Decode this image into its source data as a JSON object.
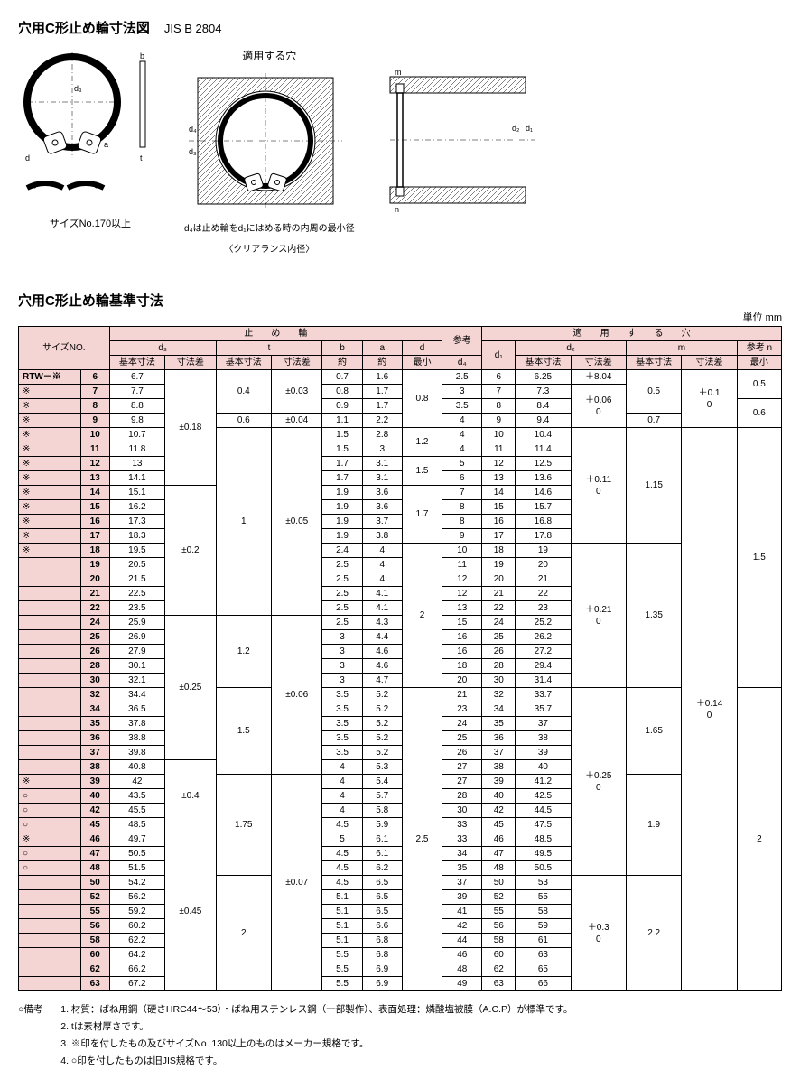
{
  "header": {
    "title": "穴用C形止め輪寸法図",
    "standard": "JIS B 2804",
    "hole_label": "適用する穴",
    "center_note1": "d₄は止め輪をd₁にはめる時の内周の最小径",
    "center_note2": "〈クリアランス内径〉",
    "size_note": "サイズNo.170以上"
  },
  "section2_title": "穴用C形止め輪基準寸法",
  "unit_label": "単位 mm",
  "table": {
    "group_headers": {
      "ring": "止　　め　　輪",
      "ref": "参考",
      "hole": "適　　用　　す　　る　　穴"
    },
    "sub_headers": {
      "size_no": "サイズNO.",
      "d3": "d₃",
      "t": "t",
      "b": "b",
      "a": "a",
      "d": "d",
      "d4": "d₄",
      "d1": "d₁",
      "d2": "d₂",
      "m": "m",
      "ref_n": "参考 n"
    },
    "sub2": {
      "basic": "基本寸法",
      "tol": "寸法差",
      "approx": "約",
      "min": "最小"
    },
    "prefix": "RTW－※",
    "rows": [
      {
        "mark": "",
        "no": "6",
        "d3": "6.7",
        "t": "0.4",
        "b": "0.7",
        "a": "1.6",
        "d4": "2.5",
        "d1": "6",
        "d2": "6.25",
        "n": "0.5"
      },
      {
        "mark": "※",
        "no": "7",
        "d3": "7.7",
        "t": "",
        "b": "0.8",
        "a": "1.7",
        "d4": "3",
        "d1": "7",
        "d2": "7.3",
        "n": ""
      },
      {
        "mark": "※",
        "no": "8",
        "d3": "8.8",
        "t": "",
        "b": "0.9",
        "a": "1.7",
        "d4": "3.5",
        "d1": "8",
        "d2": "8.4",
        "n": ""
      },
      {
        "mark": "※",
        "no": "9",
        "d3": "9.8",
        "t": "0.6",
        "b": "1.1",
        "a": "2.2",
        "d4": "4",
        "d1": "9",
        "d2": "9.4",
        "n": "0.6"
      },
      {
        "mark": "※",
        "no": "10",
        "d3": "10.7",
        "t": "",
        "b": "1.5",
        "a": "2.8",
        "d4": "4",
        "d1": "10",
        "d2": "10.4",
        "n": ""
      },
      {
        "mark": "※",
        "no": "11",
        "d3": "11.8",
        "t": "",
        "b": "1.5",
        "a": "3",
        "d4": "4",
        "d1": "11",
        "d2": "11.4",
        "n": ""
      },
      {
        "mark": "※",
        "no": "12",
        "d3": "13",
        "t": "",
        "b": "1.7",
        "a": "3.1",
        "d4": "5",
        "d1": "12",
        "d2": "12.5",
        "n": ""
      },
      {
        "mark": "※",
        "no": "13",
        "d3": "14.1",
        "t": "",
        "b": "1.7",
        "a": "3.1",
        "d4": "6",
        "d1": "13",
        "d2": "13.6",
        "n": ""
      },
      {
        "mark": "※",
        "no": "14",
        "d3": "15.1",
        "t": "",
        "b": "1.9",
        "a": "3.6",
        "d4": "7",
        "d1": "14",
        "d2": "14.6",
        "n": ""
      },
      {
        "mark": "※",
        "no": "15",
        "d3": "16.2",
        "t": "",
        "b": "1.9",
        "a": "3.6",
        "d4": "8",
        "d1": "15",
        "d2": "15.7",
        "n": ""
      },
      {
        "mark": "※",
        "no": "16",
        "d3": "17.3",
        "t": "1",
        "b": "1.9",
        "a": "3.7",
        "d4": "8",
        "d1": "16",
        "d2": "16.8",
        "n": ""
      },
      {
        "mark": "※",
        "no": "17",
        "d3": "18.3",
        "t": "",
        "b": "1.9",
        "a": "3.8",
        "d4": "9",
        "d1": "17",
        "d2": "17.8",
        "n": ""
      },
      {
        "mark": "※",
        "no": "18",
        "d3": "19.5",
        "t": "",
        "b": "2.4",
        "a": "4",
        "d4": "10",
        "d1": "18",
        "d2": "19",
        "n": ""
      },
      {
        "mark": "",
        "no": "19",
        "d3": "20.5",
        "t": "",
        "b": "2.5",
        "a": "4",
        "d4": "11",
        "d1": "19",
        "d2": "20",
        "n": ""
      },
      {
        "mark": "",
        "no": "20",
        "d3": "21.5",
        "t": "",
        "b": "2.5",
        "a": "4",
        "d4": "12",
        "d1": "20",
        "d2": "21",
        "n": ""
      },
      {
        "mark": "",
        "no": "21",
        "d3": "22.5",
        "t": "",
        "b": "2.5",
        "a": "4.1",
        "d4": "12",
        "d1": "21",
        "d2": "22",
        "n": ""
      },
      {
        "mark": "",
        "no": "22",
        "d3": "23.5",
        "t": "",
        "b": "2.5",
        "a": "4.1",
        "d4": "13",
        "d1": "22",
        "d2": "23",
        "n": ""
      },
      {
        "mark": "",
        "no": "24",
        "d3": "25.9",
        "t": "",
        "b": "2.5",
        "a": "4.3",
        "d4": "15",
        "d1": "24",
        "d2": "25.2",
        "n": ""
      },
      {
        "mark": "",
        "no": "25",
        "d3": "26.9",
        "t": "",
        "b": "3",
        "a": "4.4",
        "d4": "16",
        "d1": "25",
        "d2": "26.2",
        "n": ""
      },
      {
        "mark": "",
        "no": "26",
        "d3": "27.9",
        "t": "",
        "b": "3",
        "a": "4.6",
        "d4": "16",
        "d1": "26",
        "d2": "27.2",
        "n": ""
      },
      {
        "mark": "",
        "no": "28",
        "d3": "30.1",
        "t": "1.2",
        "b": "3",
        "a": "4.6",
        "d4": "18",
        "d1": "28",
        "d2": "29.4",
        "n": ""
      },
      {
        "mark": "",
        "no": "30",
        "d3": "32.1",
        "t": "",
        "b": "3",
        "a": "4.7",
        "d4": "20",
        "d1": "30",
        "d2": "31.4",
        "n": ""
      },
      {
        "mark": "",
        "no": "32",
        "d3": "34.4",
        "t": "",
        "b": "3.5",
        "a": "5.2",
        "d4": "21",
        "d1": "32",
        "d2": "33.7",
        "n": ""
      },
      {
        "mark": "",
        "no": "34",
        "d3": "36.5",
        "t": "",
        "b": "3.5",
        "a": "5.2",
        "d4": "23",
        "d1": "34",
        "d2": "35.7",
        "n": ""
      },
      {
        "mark": "",
        "no": "35",
        "d3": "37.8",
        "t": "",
        "b": "3.5",
        "a": "5.2",
        "d4": "24",
        "d1": "35",
        "d2": "37",
        "n": ""
      },
      {
        "mark": "",
        "no": "36",
        "d3": "38.8",
        "t": "1.5",
        "b": "3.5",
        "a": "5.2",
        "d4": "25",
        "d1": "36",
        "d2": "38",
        "n": ""
      },
      {
        "mark": "",
        "no": "37",
        "d3": "39.8",
        "t": "",
        "b": "3.5",
        "a": "5.2",
        "d4": "26",
        "d1": "37",
        "d2": "39",
        "n": ""
      },
      {
        "mark": "",
        "no": "38",
        "d3": "40.8",
        "t": "",
        "b": "4",
        "a": "5.3",
        "d4": "27",
        "d1": "38",
        "d2": "40",
        "n": ""
      },
      {
        "mark": "※",
        "no": "39",
        "d3": "42",
        "t": "",
        "b": "4",
        "a": "5.4",
        "d4": "27",
        "d1": "39",
        "d2": "41.2",
        "n": ""
      },
      {
        "mark": "○",
        "no": "40",
        "d3": "43.5",
        "t": "",
        "b": "4",
        "a": "5.7",
        "d4": "28",
        "d1": "40",
        "d2": "42.5",
        "n": ""
      },
      {
        "mark": "○",
        "no": "42",
        "d3": "45.5",
        "t": "",
        "b": "4",
        "a": "5.8",
        "d4": "30",
        "d1": "42",
        "d2": "44.5",
        "n": ""
      },
      {
        "mark": "○",
        "no": "45",
        "d3": "48.5",
        "t": "1.75",
        "b": "4.5",
        "a": "5.9",
        "d4": "33",
        "d1": "45",
        "d2": "47.5",
        "n": ""
      },
      {
        "mark": "※",
        "no": "46",
        "d3": "49.7",
        "t": "",
        "b": "5",
        "a": "6.1",
        "d4": "33",
        "d1": "46",
        "d2": "48.5",
        "n": ""
      },
      {
        "mark": "○",
        "no": "47",
        "d3": "50.5",
        "t": "",
        "b": "4.5",
        "a": "6.1",
        "d4": "34",
        "d1": "47",
        "d2": "49.5",
        "n": ""
      },
      {
        "mark": "○",
        "no": "48",
        "d3": "51.5",
        "t": "",
        "b": "4.5",
        "a": "6.2",
        "d4": "35",
        "d1": "48",
        "d2": "50.5",
        "n": ""
      },
      {
        "mark": "",
        "no": "50",
        "d3": "54.2",
        "t": "",
        "b": "4.5",
        "a": "6.5",
        "d4": "37",
        "d1": "50",
        "d2": "53",
        "n": ""
      },
      {
        "mark": "",
        "no": "52",
        "d3": "56.2",
        "t": "",
        "b": "5.1",
        "a": "6.5",
        "d4": "39",
        "d1": "52",
        "d2": "55",
        "n": ""
      },
      {
        "mark": "",
        "no": "55",
        "d3": "59.2",
        "t": "",
        "b": "5.1",
        "a": "6.5",
        "d4": "41",
        "d1": "55",
        "d2": "58",
        "n": ""
      },
      {
        "mark": "",
        "no": "56",
        "d3": "60.2",
        "t": "",
        "b": "5.1",
        "a": "6.6",
        "d4": "42",
        "d1": "56",
        "d2": "59",
        "n": ""
      },
      {
        "mark": "",
        "no": "58",
        "d3": "62.2",
        "t": "2",
        "b": "5.1",
        "a": "6.8",
        "d4": "44",
        "d1": "58",
        "d2": "61",
        "n": ""
      },
      {
        "mark": "",
        "no": "60",
        "d3": "64.2",
        "t": "",
        "b": "5.5",
        "a": "6.8",
        "d4": "46",
        "d1": "60",
        "d2": "63",
        "n": ""
      },
      {
        "mark": "",
        "no": "62",
        "d3": "66.2",
        "t": "",
        "b": "5.5",
        "a": "6.9",
        "d4": "48",
        "d1": "62",
        "d2": "65",
        "n": ""
      },
      {
        "mark": "",
        "no": "63",
        "d3": "67.2",
        "t": "",
        "b": "5.5",
        "a": "6.9",
        "d4": "49",
        "d1": "63",
        "d2": "66",
        "n": ""
      }
    ],
    "merges": {
      "d3_tol": [
        {
          "span": 8,
          "val": "±0.18"
        },
        {
          "span": 9,
          "val": "±0.2"
        },
        {
          "span": 10,
          "val": "±0.25"
        },
        {
          "span": 5,
          "val": "±0.4"
        },
        {
          "span": 11,
          "val": "±0.45"
        }
      ],
      "t_basic": [
        {
          "span": 3,
          "val": "0.4"
        },
        {
          "span": 1,
          "val": "0.6"
        },
        {
          "span": 13,
          "val": "1"
        },
        {
          "span": 5,
          "val": "1.2"
        },
        {
          "span": 6,
          "val": "1.5"
        },
        {
          "span": 7,
          "val": "1.75"
        },
        {
          "span": 8,
          "val": "2"
        }
      ],
      "t_tol": [
        {
          "span": 3,
          "val": "±0.03"
        },
        {
          "span": 1,
          "val": "±0.04"
        },
        {
          "span": 13,
          "val": "±0.05"
        },
        {
          "span": 11,
          "val": "±0.06"
        },
        {
          "span": 15,
          "val": "±0.07"
        }
      ],
      "d_min": [
        {
          "span": 4,
          "val": "0.8"
        },
        {
          "span": 2,
          "val": "1.2"
        },
        {
          "span": 2,
          "val": "1.5"
        },
        {
          "span": 4,
          "val": "1.7"
        },
        {
          "span": 10,
          "val": "2"
        },
        {
          "span": 21,
          "val": "2.5"
        }
      ],
      "d2_tol": [
        {
          "span": 1,
          "val": "＋8.04"
        },
        {
          "span": 3,
          "val": "＋0.06\n0"
        },
        {
          "span": 8,
          "val": "＋0.11\n0"
        },
        {
          "span": 10,
          "val": "＋0.21\n0"
        },
        {
          "span": 13,
          "val": "＋0.25\n0"
        },
        {
          "span": 8,
          "val": "＋0.3\n0"
        }
      ],
      "m_basic": [
        {
          "span": 3,
          "val": "0.5"
        },
        {
          "span": 1,
          "val": "0.7"
        },
        {
          "span": 8,
          "val": "1.15"
        },
        {
          "span": 10,
          "val": "1.35"
        },
        {
          "span": 6,
          "val": "1.65"
        },
        {
          "span": 7,
          "val": "1.9"
        },
        {
          "span": 8,
          "val": "2.2"
        }
      ],
      "m_tol": [
        {
          "span": 4,
          "val": "＋0.1\n0"
        },
        {
          "span": 39,
          "val": "＋0.14\n0"
        }
      ],
      "n_min": [
        {
          "span": 2,
          "val": "0.5"
        },
        {
          "span": 2,
          "val": "0.6"
        },
        {
          "span": 18,
          "val": "1.5"
        },
        {
          "span": 21,
          "val": "2"
        }
      ]
    }
  },
  "notes": {
    "label": "○備考",
    "items": [
      "材質：ばね用鋼（硬さHRC44～53）・ばね用ステンレス鋼（一部製作）、表面処理：燐酸塩被膜（A.C.P）が標準です。",
      "tは素材厚さです。",
      "※印を付したもの及びサイズNo. 130以上のものはメーカー規格です。",
      "○印を付したものは旧JIS規格です。"
    ]
  },
  "style": {
    "pink": "#f5d4d4",
    "border": "#000000"
  }
}
